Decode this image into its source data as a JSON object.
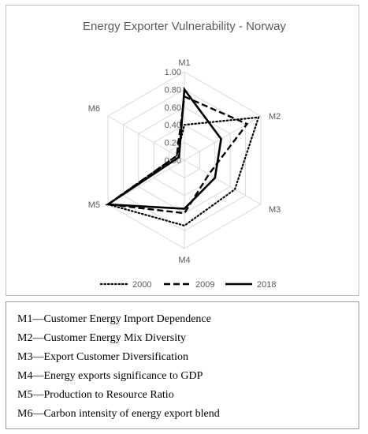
{
  "chart_data": {
    "type": "radar",
    "title": "Energy Exporter Vulnerability - Norway",
    "axes": [
      "M1",
      "M2",
      "M3",
      "M4",
      "M5",
      "M6"
    ],
    "radial_ticks": [
      "0.00",
      "0.20",
      "0.40",
      "0.60",
      "0.80",
      "1.00"
    ],
    "rlim": [
      0,
      1
    ],
    "grid": true,
    "legend_position": "bottom",
    "series": [
      {
        "name": "2000",
        "style": "dotted",
        "values": [
          0.4,
          0.97,
          0.66,
          0.74,
          1.0,
          0.1
        ]
      },
      {
        "name": "2009",
        "style": "dashed",
        "values": [
          0.72,
          0.82,
          0.32,
          0.6,
          1.0,
          0.1
        ]
      },
      {
        "name": "2018",
        "style": "solid",
        "values": [
          0.8,
          0.48,
          0.4,
          0.55,
          1.0,
          0.07
        ]
      }
    ]
  },
  "definitions": [
    "M1—Customer Energy Import Dependence",
    "M2—Customer Energy Mix Diversity",
    "M3—Export Customer Diversification",
    "M4—Energy exports significance to GDP",
    "M5—Production to Resource Ratio",
    "M6—Carbon intensity of energy export blend"
  ]
}
